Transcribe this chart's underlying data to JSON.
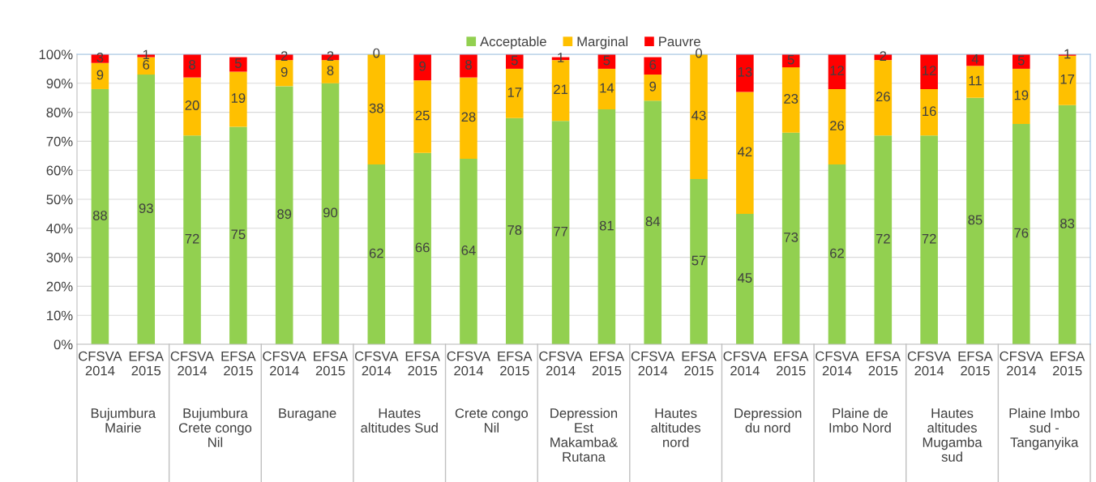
{
  "chart_data": {
    "type": "bar",
    "stacked": true,
    "categories": [
      "CFSVA 2014",
      "EFSA 2015",
      "CFSVA 2014",
      "EFSA 2015",
      "CFSVA 2014",
      "EFSA 2015",
      "CFSVA 2014",
      "EFSA 2015",
      "CFSVA 2014",
      "EFSA 2015",
      "CFSVA 2014",
      "EFSA 2015",
      "CFSVA 2014",
      "EFSA 2015",
      "CFSVA 2014",
      "EFSA 2015",
      "CFSVA 2014",
      "EFSA 2015",
      "CFSVA 2014",
      "EFSA 2015",
      "CFSVA 2014",
      "EFSA 2015"
    ],
    "annotations": [
      "Bujumbura\nMairie",
      "Bujumbura\nCrete congo\nNil",
      "Buragane",
      "Hautes\naltitudes Sud",
      "Crete congo\nNil",
      "Depression\nEst\nMakamba&\nRutana",
      "Hautes\naltitudes\nnord",
      "Depression\ndu nord",
      "Plaine de\nImbo Nord",
      "Hautes\naltitudes\nMugamba\nsud",
      "Plaine Imbo\nsud -\nTanganyika"
    ],
    "series": [
      {
        "name": "Acceptable",
        "color": "#92d050",
        "values": [
          88,
          93,
          72,
          75,
          89,
          90,
          62,
          66,
          64,
          78,
          77,
          81,
          84,
          57,
          45,
          73,
          62,
          72,
          72,
          85,
          76,
          82.5
        ],
        "value_labels": [
          "88",
          "93",
          "72",
          "75",
          "89",
          "90",
          "62",
          "66",
          "64",
          "78",
          "77",
          "81",
          "84",
          "57",
          "45",
          "73",
          "62",
          "72",
          "72",
          "85",
          "76",
          "83"
        ]
      },
      {
        "name": "Marginal",
        "color": "#ffc000",
        "values": [
          9,
          6,
          20,
          19,
          9,
          8,
          38,
          25,
          28,
          17,
          21,
          14,
          9,
          43,
          42,
          22.5,
          26,
          26,
          16,
          11,
          19,
          17
        ],
        "value_labels": [
          "9",
          "6",
          "20",
          "19",
          "9",
          "8",
          "38",
          "25",
          "28",
          "17",
          "21",
          "14",
          "9",
          "43",
          "42",
          "23",
          "26",
          "26",
          "16",
          "11",
          "19",
          "17"
        ]
      },
      {
        "name": "Pauvre",
        "color": "#ff0000",
        "values": [
          3,
          1,
          8,
          5,
          2,
          2,
          0,
          9,
          8,
          5,
          1,
          5,
          6,
          0,
          13,
          4.5,
          12,
          2,
          12,
          4,
          5,
          0.5
        ],
        "value_labels": [
          "3",
          "1",
          "8",
          "5",
          "2",
          "2",
          "0",
          "9",
          "8",
          "5",
          "1",
          "5",
          "6",
          "0",
          "13",
          "5",
          "12",
          "2",
          "12",
          "4",
          "5",
          "1"
        ]
      }
    ],
    "ylim": [
      0,
      100
    ],
    "yticks": [
      {
        "value": 0,
        "label": "0%"
      },
      {
        "value": 10,
        "label": "10%"
      },
      {
        "value": 20,
        "label": "20%"
      },
      {
        "value": 30,
        "label": "30%"
      },
      {
        "value": 40,
        "label": "40%"
      },
      {
        "value": 50,
        "label": "50%"
      },
      {
        "value": 60,
        "label": "60%"
      },
      {
        "value": 70,
        "label": "70%"
      },
      {
        "value": 80,
        "label": "80%"
      },
      {
        "value": 90,
        "label": "90%"
      },
      {
        "value": 100,
        "label": "100%"
      }
    ],
    "grid": "y",
    "legend": "top"
  }
}
